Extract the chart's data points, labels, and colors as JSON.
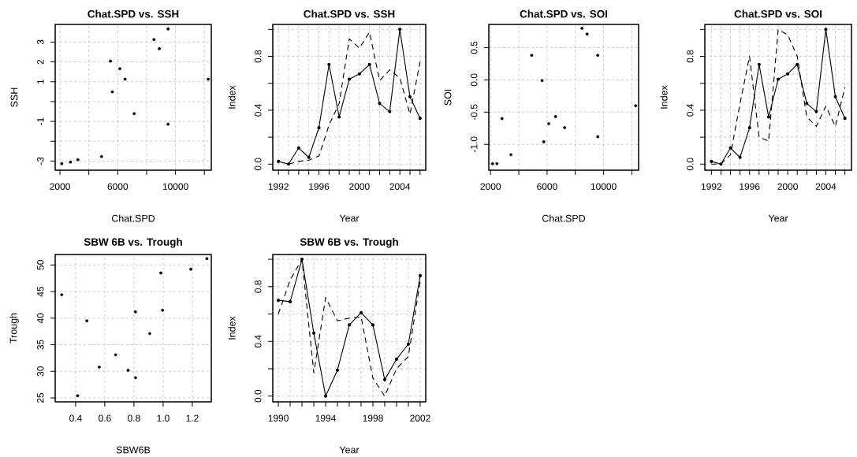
{
  "chart_data": [
    {
      "type": "scatter",
      "title": "Chat.SPD vs. SSH",
      "xlabel": "Chat.SPD",
      "ylabel": "SSH",
      "grid": true,
      "marker": "circle",
      "color": "#000000",
      "x": [
        2128,
        2730,
        3240,
        4880,
        5500,
        5630,
        6150,
        6510,
        7140,
        8510,
        8880,
        9490,
        9490,
        12270
      ],
      "values": [
        -3.13,
        -3.05,
        -2.93,
        -2.77,
        2.04,
        0.49,
        1.66,
        1.13,
        -0.61,
        3.13,
        2.67,
        3.66,
        -1.14,
        1.13
      ],
      "xlim": [
        1670,
        12480
      ],
      "ylim": [
        -3.46,
        3.89
      ],
      "xticks": [
        2000,
        {
          "value": 4000,
          "label": null
        },
        6000,
        {
          "value": 8000,
          "label": null
        },
        10000,
        {
          "value": 12000,
          "label": null
        }
      ],
      "yticks": [
        -3,
        {
          "value": -2,
          "label": null
        },
        -1,
        {
          "value": 0,
          "label": null
        },
        1,
        2,
        3
      ]
    },
    {
      "type": "line",
      "title": "Chat.SPD vs. SSH",
      "xlabel": "Year",
      "ylabel": "Index",
      "grid": true,
      "x": [
        1992,
        1993,
        1994,
        1995,
        1996,
        1997,
        1998,
        1999,
        2000,
        2001,
        2002,
        2003,
        2004,
        2005,
        2006
      ],
      "series": [
        {
          "color": "#000000",
          "marker": "circle",
          "line_style": "solid",
          "values": [
            0.02,
            0.0,
            0.12,
            0.05,
            0.27,
            0.74,
            0.35,
            0.63,
            0.67,
            0.74,
            0.45,
            0.39,
            1.0,
            0.5,
            0.34
          ]
        },
        {
          "color": "#000000",
          "marker": "none",
          "line_style": "dashed",
          "values": [
            null,
            0.0,
            0.02,
            0.03,
            0.06,
            0.29,
            0.45,
            0.93,
            0.86,
            0.98,
            0.62,
            0.7,
            0.64,
            0.37,
            0.76
          ]
        }
      ],
      "xlim": [
        1991.44,
        2006.56
      ],
      "ylim": [
        -0.045,
        1.037
      ],
      "xticks": [
        1992,
        {
          "value": 1993,
          "label": null
        },
        {
          "value": 1994,
          "label": null
        },
        {
          "value": 1995,
          "label": null
        },
        1996,
        {
          "value": 1997,
          "label": null
        },
        {
          "value": 1998,
          "label": null
        },
        {
          "value": 1999,
          "label": null
        },
        2000,
        {
          "value": 2001,
          "label": null
        },
        {
          "value": 2002,
          "label": null
        },
        {
          "value": 2003,
          "label": null
        },
        2004,
        {
          "value": 2005,
          "label": null
        },
        {
          "value": 2006,
          "label": null
        }
      ],
      "yticks": [
        {
          "value": 0,
          "label": "0.0"
        },
        {
          "value": 0.2,
          "label": null
        },
        0.4,
        {
          "value": 0.6,
          "label": null
        },
        0.8,
        {
          "value": 1,
          "label": null
        }
      ]
    },
    {
      "type": "scatter",
      "title": "Chat.SPD vs. SOI",
      "xlabel": "Chat.SPD",
      "ylabel": "SOI",
      "grid": true,
      "marker": "circle",
      "color": "#000000",
      "x": [
        2144,
        2450,
        2810,
        3440,
        4910,
        5650,
        5760,
        6120,
        6600,
        7250,
        8470,
        8830,
        9590,
        9590,
        12270
      ],
      "values": [
        -1.3,
        -1.3,
        -0.6,
        -1.16,
        0.38,
        -0.01,
        -0.96,
        -0.68,
        -0.57,
        -0.74,
        0.8,
        0.71,
        0.38,
        -0.88,
        -0.4
      ],
      "xlim": [
        1875,
        12480
      ],
      "ylim": [
        -1.4,
        0.86
      ],
      "xticks": [
        2000,
        {
          "value": 4000,
          "label": null
        },
        6000,
        {
          "value": 8000,
          "label": null
        },
        10000,
        {
          "value": 12000,
          "label": null
        }
      ],
      "yticks": [
        {
          "value": -1,
          "label": "-1.0"
        },
        -0.5,
        {
          "value": 0,
          "label": "0.0"
        },
        0.5
      ]
    },
    {
      "type": "line",
      "title": "Chat.SPD vs. SOI",
      "xlabel": "Year",
      "ylabel": "Index",
      "grid": true,
      "x": [
        1992,
        1993,
        1994,
        1995,
        1996,
        1997,
        1998,
        1999,
        2000,
        2001,
        2002,
        2003,
        2004,
        2005,
        2006
      ],
      "series": [
        {
          "color": "#000000",
          "marker": "circle",
          "line_style": "solid",
          "values": [
            0.02,
            0.0,
            0.12,
            0.05,
            0.27,
            0.74,
            0.35,
            0.63,
            0.67,
            0.74,
            0.45,
            0.39,
            1.0,
            0.5,
            0.34
          ]
        },
        {
          "color": "#000000",
          "marker": "none",
          "line_style": "dashed",
          "values": [
            0.0,
            0.0,
            0.07,
            0.45,
            0.8,
            0.2,
            0.17,
            1.0,
            0.96,
            0.8,
            0.35,
            0.28,
            0.43,
            0.28,
            0.57
          ]
        }
      ],
      "xlim": [
        1991.31,
        2006.69
      ],
      "ylim": [
        -0.045,
        1.037
      ],
      "xticks": [
        1992,
        {
          "value": 1993,
          "label": null
        },
        {
          "value": 1994,
          "label": null
        },
        {
          "value": 1995,
          "label": null
        },
        1996,
        {
          "value": 1997,
          "label": null
        },
        {
          "value": 1998,
          "label": null
        },
        {
          "value": 1999,
          "label": null
        },
        2000,
        {
          "value": 2001,
          "label": null
        },
        {
          "value": 2002,
          "label": null
        },
        {
          "value": 2003,
          "label": null
        },
        2004,
        {
          "value": 2005,
          "label": null
        },
        {
          "value": 2006,
          "label": null
        }
      ],
      "yticks": [
        {
          "value": 0,
          "label": "0.0"
        },
        {
          "value": 0.2,
          "label": null
        },
        0.4,
        {
          "value": 0.6,
          "label": null
        },
        0.8,
        {
          "value": 1,
          "label": null
        }
      ]
    },
    {
      "type": "scatter",
      "title": "SBW 6B vs. Trough",
      "xlabel": "SBW6B",
      "ylabel": "Trough",
      "grid": true,
      "marker": "circle",
      "color": "#000000",
      "x": [
        0.305,
        0.414,
        0.477,
        0.562,
        0.674,
        0.76,
        0.811,
        0.81,
        0.908,
        0.984,
        0.996,
        1.19,
        1.3
      ],
      "values": [
        44.4,
        25.4,
        39.5,
        30.8,
        33.1,
        30.2,
        28.8,
        41.2,
        37.1,
        48.5,
        41.5,
        49.2,
        51.2
      ],
      "xlim": [
        0.26,
        1.33
      ],
      "ylim": [
        24.26,
        51.97
      ],
      "xticks": [
        0.4,
        0.6,
        0.8,
        {
          "value": 1,
          "label": "1.0"
        },
        1.2
      ],
      "yticks": [
        25,
        30,
        35,
        40,
        45,
        50
      ]
    },
    {
      "type": "line",
      "title": "SBW 6B vs. Trough",
      "xlabel": "Year",
      "ylabel": "Index",
      "grid": true,
      "x": [
        1990,
        1991,
        1992,
        1993,
        1994,
        1995,
        1996,
        1997,
        1998,
        1999,
        2000,
        2001,
        2002
      ],
      "series": [
        {
          "color": "#000000",
          "marker": "circle",
          "line_style": "solid",
          "values": [
            0.7,
            0.69,
            1.0,
            0.46,
            0.0,
            0.19,
            0.52,
            0.61,
            0.52,
            0.12,
            0.27,
            0.38,
            0.88
          ]
        },
        {
          "color": "#000000",
          "marker": "none",
          "line_style": "dashed",
          "values": [
            0.6,
            0.85,
            1.0,
            0.17,
            0.72,
            0.55,
            0.57,
            0.58,
            0.13,
            0.0,
            0.2,
            0.29,
            0.84
          ]
        }
      ],
      "xlim": [
        1989.53,
        2002.47
      ],
      "ylim": [
        -0.042,
        1.035
      ],
      "xticks": [
        1990,
        {
          "value": 1991,
          "label": null
        },
        {
          "value": 1992,
          "label": null
        },
        {
          "value": 1993,
          "label": null
        },
        1994,
        {
          "value": 1995,
          "label": null
        },
        {
          "value": 1996,
          "label": null
        },
        {
          "value": 1997,
          "label": null
        },
        1998,
        {
          "value": 1999,
          "label": null
        },
        {
          "value": 2000,
          "label": null
        },
        {
          "value": 2001,
          "label": null
        },
        2002
      ],
      "yticks": [
        {
          "value": 0,
          "label": "0.0"
        },
        {
          "value": 0.2,
          "label": null
        },
        0.4,
        {
          "value": 0.6,
          "label": null
        },
        0.8,
        {
          "value": 1,
          "label": null
        }
      ]
    }
  ]
}
